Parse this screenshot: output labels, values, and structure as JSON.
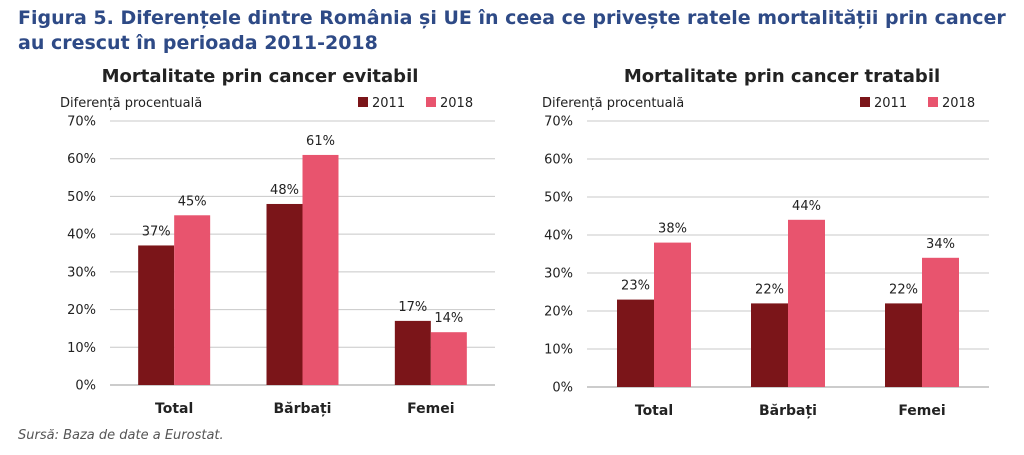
{
  "figure": {
    "title": "Figura 5. Diferențele dintre România și UE în ceea ce privește ratele mortalității prin cancer au crescut în perioada 2011-2018",
    "source": "Sursă: Baza de date a Eurostat."
  },
  "colors": {
    "s2011": "#7b1519",
    "s2018": "#e8546e",
    "grid": "#c8c8c8",
    "axis": "#999999",
    "text": "#222222"
  },
  "chart_data": [
    {
      "type": "bar",
      "title": "Mortalitate prin cancer evitabil",
      "ylabel": "Diferență procentuală",
      "xlabel": "",
      "categories": [
        "Total",
        "Bărbați",
        "Femei"
      ],
      "series": [
        {
          "name": "2011",
          "values": [
            37,
            48,
            17
          ],
          "labels": [
            "37%",
            "48%",
            "17%"
          ]
        },
        {
          "name": "2018",
          "values": [
            45,
            61,
            14
          ],
          "labels": [
            "45%",
            "61%",
            "14%"
          ]
        }
      ],
      "ylim": [
        0,
        70
      ],
      "yticks": [
        0,
        10,
        20,
        30,
        40,
        50,
        60,
        70
      ],
      "ytick_labels": [
        "0%",
        "10%",
        "20%",
        "30%",
        "40%",
        "50%",
        "60%",
        "70%"
      ],
      "grid": true,
      "legend": "top-right"
    },
    {
      "type": "bar",
      "title": "Mortalitate prin cancer tratabil",
      "ylabel": "Diferență procentuală",
      "xlabel": "",
      "categories": [
        "Total",
        "Bărbați",
        "Femei"
      ],
      "series": [
        {
          "name": "2011",
          "values": [
            23,
            22,
            22
          ],
          "labels": [
            "23%",
            "22%",
            "22%"
          ]
        },
        {
          "name": "2018",
          "values": [
            38,
            44,
            34
          ],
          "labels": [
            "38%",
            "44%",
            "34%"
          ]
        }
      ],
      "ylim": [
        0,
        70
      ],
      "yticks": [
        0,
        10,
        20,
        30,
        40,
        50,
        60,
        70
      ],
      "ytick_labels": [
        "0%",
        "10%",
        "20%",
        "30%",
        "40%",
        "50%",
        "60%",
        "70%"
      ],
      "grid": true,
      "legend": "top-right"
    }
  ]
}
